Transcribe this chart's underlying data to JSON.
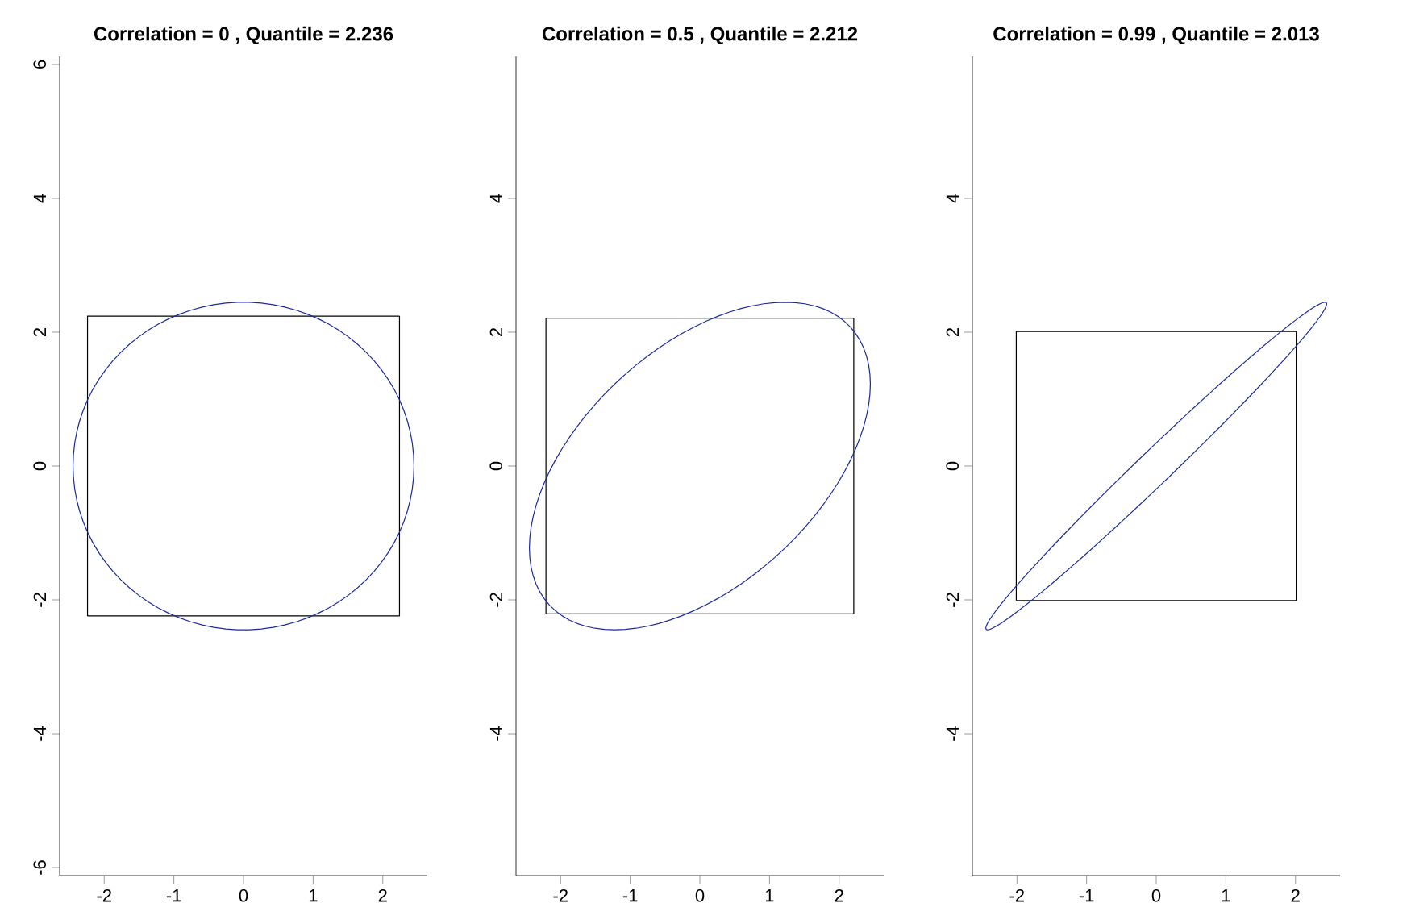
{
  "chart_data": [
    {
      "type": "line",
      "title": "Correlation = 0 , Quantile =  2.236",
      "xlim": [
        -2.64,
        2.64
      ],
      "ylim": [
        -6.12,
        6.12
      ],
      "xticks": [
        -2,
        -1,
        0,
        1,
        2
      ],
      "yticks": [
        -6,
        -4,
        -2,
        0,
        2,
        4,
        6
      ],
      "grid": false,
      "marker": "none",
      "line_style": "solid",
      "series": [
        {
          "color": "#000000",
          "x": [
            -2.24,
            2.24,
            2.24
          ],
          "values": [
            -2.24,
            -2.24,
            2.24
          ]
        },
        {
          "color": "#000000",
          "x": [
            2.24,
            -2.24,
            -2.24
          ],
          "values": [
            2.24,
            2.24,
            -2.24
          ]
        }
      ]
    },
    {
      "type": "line",
      "title": "Correlation = 0.5 , Quantile =  2.212",
      "xlim": [
        -2.64,
        2.64
      ],
      "ylim": [
        -6.12,
        6.12
      ],
      "xticks": [
        -2,
        -1,
        0,
        1,
        2
      ],
      "yticks": [
        -4,
        -2,
        0,
        2,
        4
      ],
      "grid": false,
      "marker": "none",
      "line_style": "solid",
      "series": [
        {
          "color": "#000000",
          "x": [
            -2.21,
            2.21,
            2.21
          ],
          "values": [
            -2.21,
            -2.21,
            2.21
          ]
        },
        {
          "color": "#000000",
          "x": [
            2.21,
            -2.21,
            -2.21
          ],
          "values": [
            2.21,
            2.21,
            -2.21
          ]
        }
      ]
    },
    {
      "type": "line",
      "title": "Correlation = 0.99 , Quantile =  2.013",
      "xlim": [
        -2.64,
        2.64
      ],
      "ylim": [
        -6.12,
        6.12
      ],
      "xticks": [
        -2,
        -1,
        0,
        1,
        2
      ],
      "yticks": [
        -4,
        -2,
        0,
        2,
        4
      ],
      "grid": false,
      "marker": "none",
      "line_style": "solid",
      "series": [
        {
          "color": "#000000",
          "x": [
            -2.01,
            2.01,
            2.01
          ],
          "values": [
            -2.01,
            -2.01,
            2.01
          ]
        },
        {
          "color": "#000000",
          "x": [
            2.01,
            -2.01,
            -2.01
          ],
          "values": [
            2.01,
            2.01,
            -2.01
          ]
        }
      ]
    }
  ]
}
